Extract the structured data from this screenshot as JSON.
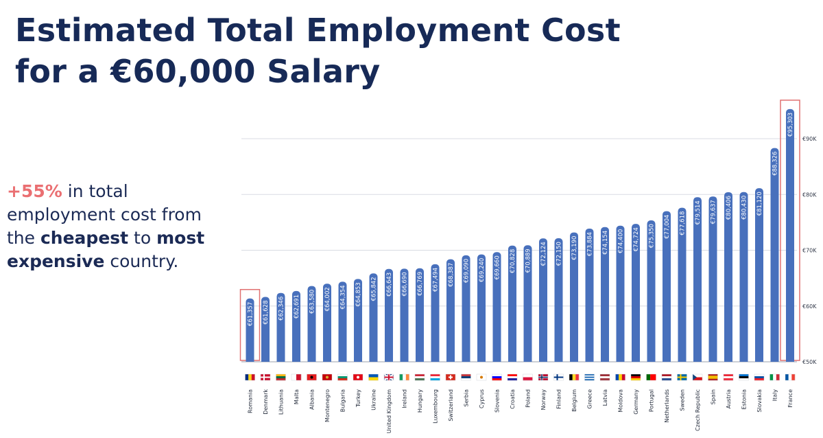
{
  "title": {
    "line1": "Estimated Total Employment Cost",
    "line2": "for a €60,000 Salary"
  },
  "callout": {
    "pct": "+55%",
    "t1": " in total employment cost from the ",
    "bold1": "cheapest",
    "t2": " to ",
    "bold2": "most expensive",
    "t3": " country."
  },
  "colors": {
    "bar": "#4870bc",
    "highlight": "#e07070",
    "grid": "#d8dbe3"
  },
  "chart_data": {
    "type": "bar",
    "categories": [
      "Romania",
      "Denmark",
      "Lithuania",
      "Malta",
      "Albania",
      "Montenegro",
      "Bulgaria",
      "Turkey",
      "Ukraine",
      "United Kingdom",
      "Ireland",
      "Hungary",
      "Luxembourg",
      "Switzerland",
      "Serbia",
      "Cyprus",
      "Slovenia",
      "Croatia",
      "Poland",
      "Norway",
      "Finland",
      "Belgium",
      "Greece",
      "Latvia",
      "Moldova",
      "Germany",
      "Portugal",
      "Netherlands",
      "Sweden",
      "Czech Republic",
      "Spain",
      "Austria",
      "Estonia",
      "Slovakia",
      "Italy",
      "France"
    ],
    "values": [
      61357,
      61628,
      62346,
      62691,
      63580,
      64002,
      64354,
      64853,
      65842,
      66643,
      66690,
      66769,
      67494,
      68387,
      69090,
      69240,
      69660,
      70828,
      70889,
      72124,
      72150,
      73190,
      73884,
      74154,
      74400,
      74724,
      75350,
      77004,
      77618,
      79514,
      79637,
      80406,
      80430,
      81120,
      88326,
      95303
    ],
    "data_labels": [
      "€61,357",
      "€61,628",
      "€62,346",
      "€62,691",
      "€63,580",
      "€64,002",
      "€64,354",
      "€64,853",
      "€65,842",
      "€66,643",
      "€66,690",
      "€66,769",
      "€67,494",
      "€68,387",
      "€69,090",
      "€69,240",
      "€69,660",
      "€70,828",
      "€70,889",
      "€72,124",
      "€72,150",
      "€73,190",
      "€73,884",
      "€74,154",
      "€74,400",
      "€74,724",
      "€75,350",
      "€77,004",
      "€77,618",
      "€79,514",
      "€79,637",
      "€80,406",
      "€80,430",
      "€81,120",
      "€88,326",
      "€95,303"
    ],
    "ylim": [
      50000,
      95303
    ],
    "yticks": [
      50000,
      60000,
      70000,
      80000,
      90000
    ],
    "ytick_labels": [
      "€50K",
      "€60K",
      "€70K",
      "€80K",
      "€90K"
    ],
    "y_axis_side": "right",
    "grid": true,
    "highlighted": [
      "Romania",
      "France"
    ],
    "flags": [
      {
        "type": "v",
        "colors": [
          "#002b7f",
          "#fcd116",
          "#ce1126"
        ]
      },
      {
        "type": "nordic",
        "colors": [
          "#c8102e",
          "#ffffff"
        ]
      },
      {
        "type": "h",
        "colors": [
          "#fdb913",
          "#006a44",
          "#c1272d"
        ]
      },
      {
        "type": "v",
        "colors": [
          "#ffffff",
          "#cf142b"
        ]
      },
      {
        "type": "solid",
        "colors": [
          "#e41e20",
          "#000000"
        ]
      },
      {
        "type": "solid",
        "colors": [
          "#c40308",
          "#d4af37"
        ]
      },
      {
        "type": "h",
        "colors": [
          "#ffffff",
          "#00966e",
          "#d62612"
        ]
      },
      {
        "type": "solid",
        "colors": [
          "#e30a17",
          "#ffffff"
        ]
      },
      {
        "type": "h",
        "colors": [
          "#0057b7",
          "#ffd700"
        ]
      },
      {
        "type": "uk",
        "colors": [
          "#012169",
          "#ffffff",
          "#c8102e"
        ]
      },
      {
        "type": "v",
        "colors": [
          "#169b62",
          "#ffffff",
          "#ff883e"
        ]
      },
      {
        "type": "h",
        "colors": [
          "#ce2939",
          "#ffffff",
          "#477050"
        ]
      },
      {
        "type": "h",
        "colors": [
          "#ed2939",
          "#ffffff",
          "#00a1de"
        ]
      },
      {
        "type": "cross",
        "colors": [
          "#d52b1e",
          "#ffffff"
        ]
      },
      {
        "type": "h",
        "colors": [
          "#c6363c",
          "#0c4076",
          "#ffffff"
        ]
      },
      {
        "type": "solid",
        "colors": [
          "#ffffff",
          "#d57800"
        ]
      },
      {
        "type": "h",
        "colors": [
          "#ffffff",
          "#0000ff",
          "#ff0000"
        ]
      },
      {
        "type": "h",
        "colors": [
          "#ff0000",
          "#ffffff",
          "#171796"
        ]
      },
      {
        "type": "h",
        "colors": [
          "#ffffff",
          "#dc143c"
        ]
      },
      {
        "type": "nordic",
        "colors": [
          "#ba0c2f",
          "#ffffff",
          "#00205b"
        ]
      },
      {
        "type": "nordic",
        "colors": [
          "#ffffff",
          "#003580"
        ]
      },
      {
        "type": "v",
        "colors": [
          "#000000",
          "#fdda24",
          "#ef3340"
        ]
      },
      {
        "type": "h",
        "colors": [
          "#0d5eaf",
          "#ffffff",
          "#0d5eaf",
          "#ffffff",
          "#0d5eaf"
        ]
      },
      {
        "type": "h",
        "colors": [
          "#9e3039",
          "#ffffff",
          "#9e3039"
        ]
      },
      {
        "type": "v",
        "colors": [
          "#0046ae",
          "#ffd200",
          "#cc092f"
        ]
      },
      {
        "type": "h",
        "colors": [
          "#000000",
          "#dd0000",
          "#ffce00"
        ]
      },
      {
        "type": "v2",
        "colors": [
          "#006600",
          "#ff0000"
        ]
      },
      {
        "type": "h",
        "colors": [
          "#ae1c28",
          "#ffffff",
          "#21468b"
        ]
      },
      {
        "type": "nordic",
        "colors": [
          "#006aa7",
          "#fecc00"
        ]
      },
      {
        "type": "czech",
        "colors": [
          "#ffffff",
          "#d7141a",
          "#11457e"
        ]
      },
      {
        "type": "h",
        "colors": [
          "#aa151b",
          "#f1bf00",
          "#f1bf00",
          "#aa151b"
        ]
      },
      {
        "type": "h",
        "colors": [
          "#ed2939",
          "#ffffff",
          "#ed2939"
        ]
      },
      {
        "type": "h",
        "colors": [
          "#0072ce",
          "#000000",
          "#ffffff"
        ]
      },
      {
        "type": "h",
        "colors": [
          "#ffffff",
          "#0b4ea2",
          "#ee1c25"
        ]
      },
      {
        "type": "v",
        "colors": [
          "#009246",
          "#ffffff",
          "#ce2b37"
        ]
      },
      {
        "type": "v",
        "colors": [
          "#0055a4",
          "#ffffff",
          "#ef4135"
        ]
      }
    ]
  }
}
